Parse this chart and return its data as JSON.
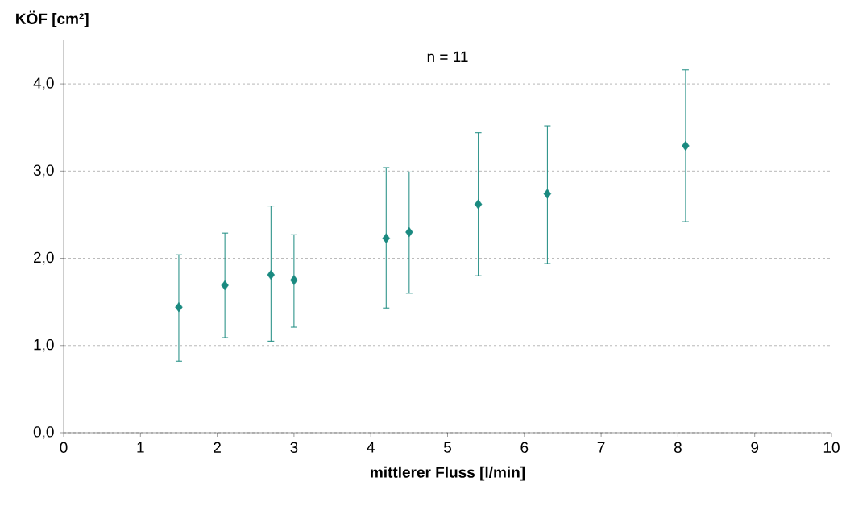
{
  "chart_data": {
    "type": "scatter",
    "xlabel": "mittlerer Fluss [l/min]",
    "ylabel": "KÖF [cm²]",
    "annotations": [
      "n = 11"
    ],
    "x": [
      1.5,
      2.1,
      2.7,
      3.0,
      4.2,
      4.5,
      5.4,
      6.3,
      8.1
    ],
    "values": [
      1.44,
      1.69,
      1.81,
      1.75,
      2.23,
      2.3,
      2.62,
      2.74,
      3.29
    ],
    "errors": [
      [
        0.82,
        2.04
      ],
      [
        1.09,
        2.29
      ],
      [
        1.05,
        2.6
      ],
      [
        1.21,
        2.27
      ],
      [
        1.43,
        3.04
      ],
      [
        1.6,
        2.99
      ],
      [
        1.8,
        3.44
      ],
      [
        1.94,
        3.52
      ],
      [
        2.42,
        4.16
      ]
    ],
    "color": "#1a8a80",
    "marker": "diamond",
    "xlim": [
      0,
      10
    ],
    "xticks": [
      0,
      1,
      2,
      3,
      4,
      5,
      6,
      7,
      8,
      9,
      10
    ],
    "ylim": [
      0,
      4.5
    ],
    "yticks": [
      {
        "value": 0,
        "label": "0,0"
      },
      {
        "value": 1,
        "label": "1,0"
      },
      {
        "value": 2,
        "label": "2,0"
      },
      {
        "value": 3,
        "label": "3,0"
      },
      {
        "value": 4,
        "label": "4,0"
      }
    ],
    "grid": "y",
    "line_style": "none"
  }
}
